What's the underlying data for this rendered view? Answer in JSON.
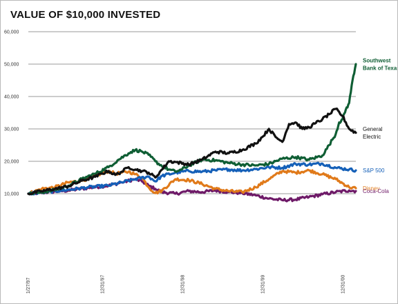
{
  "chart_data": {
    "type": "line",
    "title": "VALUE OF $10,000 INVESTED",
    "xlabel": "",
    "ylabel": "",
    "ylim": [
      0,
      60000
    ],
    "y_ticks": [
      "60,000",
      "50,000",
      "40,000",
      "30,000",
      "20,000",
      "10,000"
    ],
    "x_ticks": [
      "1/27/97",
      "12/31/97",
      "12/31/98",
      "12/31/99",
      "12/31/00"
    ],
    "x_tick_months": [
      0,
      11.1,
      23.1,
      35.1,
      47.1
    ],
    "grid": true,
    "legend": "right-end labels",
    "series": [
      {
        "name": "Southwest Bank of Texas",
        "color": "#0f5e34",
        "points": [
          [
            0,
            10000
          ],
          [
            2,
            10400
          ],
          [
            4,
            11200
          ],
          [
            6,
            12500
          ],
          [
            8,
            14500
          ],
          [
            10,
            16200
          ],
          [
            12,
            18200
          ],
          [
            13.5,
            20500
          ],
          [
            15,
            22500
          ],
          [
            16,
            23500
          ],
          [
            17,
            23000
          ],
          [
            18,
            22000
          ],
          [
            19,
            20000
          ],
          [
            20,
            18500
          ],
          [
            21,
            17500
          ],
          [
            22,
            16800
          ],
          [
            23,
            17500
          ],
          [
            24,
            18700
          ],
          [
            26,
            20500
          ],
          [
            28,
            20300
          ],
          [
            30,
            19500
          ],
          [
            32,
            19000
          ],
          [
            34,
            18700
          ],
          [
            36,
            19200
          ],
          [
            38,
            20800
          ],
          [
            40,
            21300
          ],
          [
            42,
            20500
          ],
          [
            44,
            21800
          ],
          [
            45,
            25000
          ],
          [
            46,
            28500
          ],
          [
            46.5,
            32000
          ],
          [
            47,
            33000
          ],
          [
            47.5,
            36000
          ],
          [
            48,
            38000
          ],
          [
            48.5,
            45000
          ],
          [
            49,
            50000
          ]
        ]
      },
      {
        "name": "General Electric",
        "color": "#111111",
        "points": [
          [
            0,
            10000
          ],
          [
            2,
            10800
          ],
          [
            4,
            11500
          ],
          [
            6,
            12300
          ],
          [
            8,
            14000
          ],
          [
            10,
            15200
          ],
          [
            11,
            16200
          ],
          [
            12,
            17000
          ],
          [
            13,
            15800
          ],
          [
            14,
            16800
          ],
          [
            15,
            18200
          ],
          [
            16,
            17500
          ],
          [
            17,
            17000
          ],
          [
            18,
            16500
          ],
          [
            19,
            15000
          ],
          [
            20,
            17500
          ],
          [
            21,
            20000
          ],
          [
            22,
            19800
          ],
          [
            24,
            19000
          ],
          [
            26,
            20500
          ],
          [
            28,
            23000
          ],
          [
            30,
            22500
          ],
          [
            32,
            23500
          ],
          [
            34,
            25500
          ],
          [
            35,
            27500
          ],
          [
            36,
            30000
          ],
          [
            37,
            27500
          ],
          [
            38,
            26000
          ],
          [
            39,
            31500
          ],
          [
            40,
            32000
          ],
          [
            41,
            30000
          ],
          [
            42,
            30500
          ],
          [
            43,
            31800
          ],
          [
            44,
            33000
          ],
          [
            45,
            34500
          ],
          [
            46,
            36200
          ],
          [
            47,
            34000
          ],
          [
            48,
            30000
          ],
          [
            49,
            28800
          ]
        ]
      },
      {
        "name": "S&P 500",
        "color": "#1560b8",
        "points": [
          [
            0,
            10000
          ],
          [
            3,
            10600
          ],
          [
            6,
            11200
          ],
          [
            9,
            12000
          ],
          [
            12,
            12500
          ],
          [
            14,
            13500
          ],
          [
            16,
            14500
          ],
          [
            18,
            15300
          ],
          [
            19,
            13800
          ],
          [
            20,
            15500
          ],
          [
            22,
            16500
          ],
          [
            24,
            17000
          ],
          [
            26,
            16800
          ],
          [
            28,
            17200
          ],
          [
            30,
            17500
          ],
          [
            32,
            17200
          ],
          [
            34,
            17600
          ],
          [
            36,
            18200
          ],
          [
            38,
            18000
          ],
          [
            40,
            19200
          ],
          [
            42,
            19000
          ],
          [
            44,
            19300
          ],
          [
            46,
            18000
          ],
          [
            48,
            17500
          ],
          [
            49,
            17200
          ]
        ]
      },
      {
        "name": "Disney",
        "color": "#e07a1a",
        "points": [
          [
            0,
            10000
          ],
          [
            2,
            11500
          ],
          [
            4,
            12000
          ],
          [
            6,
            13500
          ],
          [
            8,
            14000
          ],
          [
            10,
            15500
          ],
          [
            12,
            17000
          ],
          [
            13,
            16200
          ],
          [
            14,
            16500
          ],
          [
            15,
            16800
          ],
          [
            16,
            16000
          ],
          [
            17,
            15000
          ],
          [
            18,
            12000
          ],
          [
            19,
            10200
          ],
          [
            20,
            11000
          ],
          [
            22,
            14500
          ],
          [
            24,
            14200
          ],
          [
            26,
            13000
          ],
          [
            28,
            11500
          ],
          [
            30,
            10800
          ],
          [
            32,
            10500
          ],
          [
            34,
            12000
          ],
          [
            36,
            14500
          ],
          [
            38,
            17000
          ],
          [
            40,
            16500
          ],
          [
            42,
            17200
          ],
          [
            44,
            16000
          ],
          [
            46,
            14500
          ],
          [
            48,
            12000
          ],
          [
            49,
            11700
          ]
        ]
      },
      {
        "name": "Coca-Cola",
        "color": "#6e1a68",
        "points": [
          [
            0,
            10000
          ],
          [
            3,
            10500
          ],
          [
            6,
            11000
          ],
          [
            9,
            11800
          ],
          [
            12,
            12500
          ],
          [
            14,
            13500
          ],
          [
            16,
            14500
          ],
          [
            17,
            13800
          ],
          [
            18,
            12500
          ],
          [
            19,
            11500
          ],
          [
            20,
            10500
          ],
          [
            22,
            10000
          ],
          [
            24,
            10800
          ],
          [
            26,
            10500
          ],
          [
            28,
            11000
          ],
          [
            30,
            10500
          ],
          [
            32,
            10200
          ],
          [
            34,
            9500
          ],
          [
            36,
            8500
          ],
          [
            38,
            8000
          ],
          [
            40,
            8200
          ],
          [
            42,
            9000
          ],
          [
            44,
            9800
          ],
          [
            46,
            10500
          ],
          [
            48,
            11000
          ],
          [
            49,
            10800
          ]
        ]
      }
    ],
    "end_labels": [
      {
        "series": 0,
        "lines": [
          "Southwest",
          "Bank of Texas"
        ],
        "color": "#0f5e34",
        "bold": true,
        "y": 50000
      },
      {
        "series": 1,
        "lines": [
          "General",
          "Electric"
        ],
        "color": "#111111",
        "bold": false,
        "y": 28800
      },
      {
        "series": 2,
        "lines": [
          "S&P 500"
        ],
        "color": "#1560b8",
        "bold": false,
        "y": 17200
      },
      {
        "series": 3,
        "lines": [
          "Disney"
        ],
        "color": "#e07a1a",
        "bold": false,
        "y": 11700
      },
      {
        "series": 4,
        "lines": [
          "Coca-Cola"
        ],
        "color": "#6e1a68",
        "bold": false,
        "y": 10800
      }
    ]
  }
}
